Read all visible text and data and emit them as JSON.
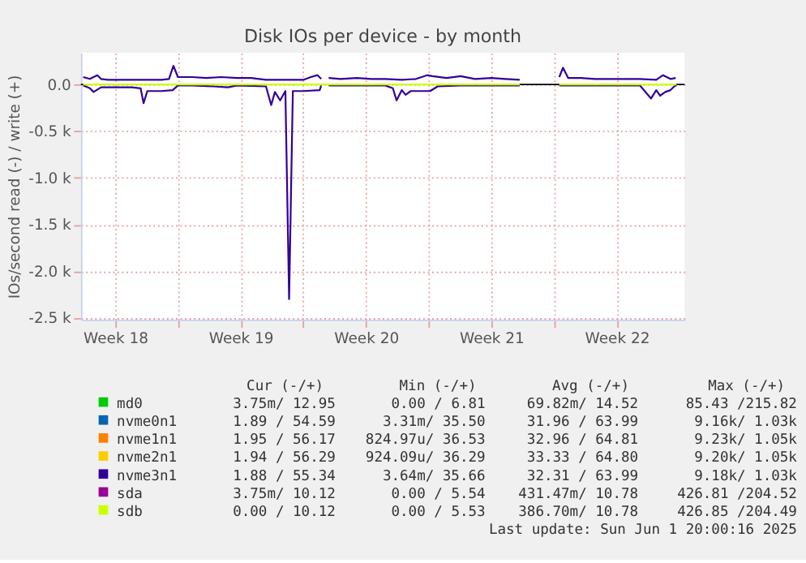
{
  "chart_data": {
    "type": "line",
    "title": "Disk IOs per device - by month",
    "ylabel": "IOs/second read (-) / write (+)",
    "xlim": [
      "2025-04-29T14:00",
      "2025-06-02T07:00"
    ],
    "ylim": [
      -2520,
      340
    ],
    "xticks": [
      {
        "value": "2025-05-01T12:00",
        "label": "Week 18"
      },
      {
        "value": "2025-05-05",
        "label": null
      },
      {
        "value": "2025-05-08T12:00",
        "label": "Week 19"
      },
      {
        "value": "2025-05-12",
        "label": null
      },
      {
        "value": "2025-05-15T12:00",
        "label": "Week 20"
      },
      {
        "value": "2025-05-19",
        "label": null
      },
      {
        "value": "2025-05-22T12:00",
        "label": "Week 21"
      },
      {
        "value": "2025-05-26",
        "label": null
      },
      {
        "value": "2025-05-29T12:00",
        "label": "Week 22"
      }
    ],
    "yticks": [
      {
        "value": 0,
        "label": "0.0"
      },
      {
        "value": -500,
        "label": "-0.5 k"
      },
      {
        "value": -1000,
        "label": "-1.0 k"
      },
      {
        "value": -1500,
        "label": "-1.5 k"
      },
      {
        "value": -2000,
        "label": "-2.0 k"
      },
      {
        "value": -2500,
        "label": "-2.5 k"
      }
    ],
    "grid": true,
    "legend": "bottom",
    "line_style": "solid",
    "marker": "none",
    "ref_lines": [
      {
        "axis": "y",
        "value": 0,
        "color": "#000000"
      }
    ],
    "series": [
      {
        "name": "md0",
        "color": "#00cc00"
      },
      {
        "name": "nvme0n1",
        "color": "#0066b3"
      },
      {
        "name": "nvme1n1",
        "color": "#ff8000"
      },
      {
        "name": "nvme2n1",
        "color": "#ffcc00"
      },
      {
        "name": "nvme3n1",
        "color": "#330099",
        "x": [
          "2025-04-29T17:00",
          "2025-04-30T02:00",
          "2025-04-30T12:00",
          "2025-04-30T17:00",
          "2025-05-01T02:00",
          "2025-05-02T10:00",
          "2025-05-04T02:00",
          "2025-05-04T12:00",
          "2025-05-04T18:00",
          "2025-05-05T00:00",
          "2025-05-05T19:00",
          "2025-05-06T14:00",
          "2025-05-07T10:00",
          "2025-05-08T07:00",
          "2025-05-09T02:00",
          "2025-05-09T22:00",
          "2025-05-10T19:00",
          "2025-05-12T00:00",
          "2025-05-12T10:00",
          "2025-05-12T19:00",
          "2025-05-13T00:00",
          "2025-05-13T05:00",
          "2025-05-13T10:00",
          "2025-05-14T02:00",
          "2025-05-15T00:00",
          "2025-05-15T19:00",
          "2025-05-16T14:00",
          "2025-05-17T12:00",
          "2025-05-18T07:00",
          "2025-05-18T22:00",
          "2025-05-19T05:00",
          "2025-05-20T00:00",
          "2025-05-20T19:00",
          "2025-05-21T14:00",
          "2025-05-22T12:00",
          "2025-05-23T07:00",
          "2025-05-24T02:00",
          "2025-05-25T05:00",
          "2025-05-26T07:00",
          "2025-05-26T12:00",
          "2025-05-26T19:00",
          "2025-05-27T12:00",
          "2025-05-28T07:00",
          "2025-05-29T05:00",
          "2025-05-30T00:00",
          "2025-05-30T19:00",
          "2025-05-31T17:00",
          "2025-06-01T02:00",
          "2025-06-01T12:00",
          "2025-06-01T19:00"
        ],
        "values": [
          80,
          60,
          100,
          60,
          50,
          50,
          50,
          60,
          200,
          80,
          80,
          70,
          80,
          70,
          70,
          50,
          50,
          50,
          80,
          100,
          60,
          null,
          70,
          60,
          70,
          60,
          60,
          50,
          60,
          100,
          90,
          70,
          90,
          60,
          70,
          60,
          50,
          null,
          80,
          180,
          70,
          70,
          60,
          60,
          60,
          60,
          50,
          100,
          60,
          70
        ]
      },
      {
        "color": "#330099",
        "x": [
          "2025-04-29T17:00",
          "2025-04-30T02:00",
          "2025-04-30T07:00",
          "2025-04-30T17:00",
          "2025-05-01T14:00",
          "2025-05-02T10:00",
          "2025-05-02T22:00",
          "2025-05-03T02:00",
          "2025-05-03T07:00",
          "2025-05-04T02:00",
          "2025-05-04T17:00",
          "2025-05-05T00:00",
          "2025-05-05T19:00",
          "2025-05-07T00:00",
          "2025-05-07T19:00",
          "2025-05-08T07:00",
          "2025-05-09T22:00",
          "2025-05-10T05:00",
          "2025-05-10T10:00",
          "2025-05-10T17:00",
          "2025-05-11T00:00",
          "2025-05-11T05:00",
          "2025-05-11T10:00",
          "2025-05-12T00:00",
          "2025-05-12T22:00",
          "2025-05-13T00:00",
          "2025-05-13T05:00",
          "2025-05-13T10:00",
          "2025-05-15T19:00",
          "2025-05-16T14:00",
          "2025-05-17T00:00",
          "2025-05-17T05:00",
          "2025-05-17T12:00",
          "2025-05-17T17:00",
          "2025-05-18T00:00",
          "2025-05-19T02:00",
          "2025-05-19T12:00",
          "2025-05-20T19:00",
          "2025-05-24T02:00",
          "2025-05-25T05:00",
          "2025-05-26T07:00",
          "2025-05-30T19:00",
          "2025-05-31T10:00",
          "2025-05-31T17:00",
          "2025-05-31T22:00",
          "2025-06-01T05:00",
          "2025-06-01T12:00",
          "2025-06-01T17:00",
          "2025-06-01T20:00"
        ],
        "values": [
          -10,
          -40,
          -80,
          -30,
          -30,
          -30,
          -40,
          -200,
          -70,
          -70,
          -60,
          -10,
          -10,
          -20,
          -30,
          -10,
          -20,
          -220,
          -80,
          -170,
          -70,
          -2300,
          -70,
          -70,
          -60,
          -10,
          null,
          -10,
          -10,
          -10,
          -40,
          -170,
          -60,
          -110,
          -70,
          -70,
          -20,
          -10,
          -10,
          null,
          -10,
          -10,
          -150,
          -60,
          -120,
          -80,
          -60,
          -20,
          -10
        ]
      },
      {
        "name": "sda",
        "color": "#990099"
      },
      {
        "name": "sdb",
        "color": "#ccff00",
        "x": [
          "2025-04-29T17:00",
          "2025-05-24T02:00",
          "2025-05-25T05:00",
          "2025-05-26T07:00",
          "2025-06-01T20:00"
        ],
        "values": [
          0,
          0,
          null,
          0,
          0
        ]
      }
    ],
    "annotations": [
      "Cur (-/+)",
      "Min (-/+)",
      "Avg (-/+)",
      "Max (-/+)",
      "3.75m/ 12.95",
      "0.00 /  6.81",
      "69.82m/ 14.52",
      "85.43 /215.82",
      "1.89 / 54.59",
      "3.31m/ 35.50",
      "31.96 / 63.99",
      "9.16k/  1.03k",
      "1.95 / 56.17",
      "824.97u/ 36.53",
      "32.96 / 64.81",
      "9.23k/  1.05k",
      "1.94 / 56.29",
      "924.09u/ 36.29",
      "33.33 / 64.80",
      "9.20k/  1.05k",
      "1.88 / 55.34",
      "3.64m/ 35.66",
      "32.31 / 63.99",
      "9.18k/  1.03k",
      "3.75m/ 10.12",
      "0.00 /  5.54",
      "431.47m/ 10.78",
      "426.81 /204.52",
      "0.00 / 10.12",
      "0.00 /  5.53",
      "386.70m/ 10.78",
      "426.85 /204.49",
      "Last update: Sun Jun  1 20:00:16 2025"
    ]
  }
}
